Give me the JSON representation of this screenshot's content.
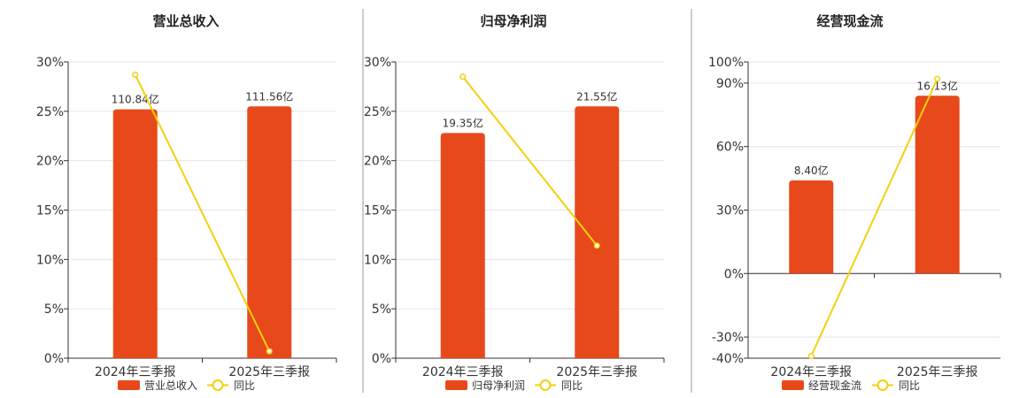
{
  "colors": {
    "bar": "#E8491B",
    "line": "#F2D10C",
    "grid": "#E4E6EC",
    "axis": "#333333",
    "divider": "#999999"
  },
  "chart_data": [
    {
      "type": "bar",
      "title": "营业总收入",
      "categories": [
        "2024年三季报",
        "2025年三季报"
      ],
      "ylim": [
        0,
        30
      ],
      "yticks": [
        0,
        5,
        10,
        15,
        20,
        25,
        30
      ],
      "ytick_labels": [
        "0%",
        "5%",
        "10%",
        "15%",
        "20%",
        "25%",
        "30%"
      ],
      "grid": true,
      "legend_position": "bottom",
      "series": [
        {
          "name": "营业总收入",
          "type": "bar",
          "values": [
            25.2,
            25.5
          ],
          "labels": [
            "110.84亿",
            "111.56亿"
          ]
        },
        {
          "name": "同比",
          "type": "line",
          "values": [
            28.7,
            0.7
          ]
        }
      ]
    },
    {
      "type": "bar",
      "title": "归母净利润",
      "categories": [
        "2024年三季报",
        "2025年三季报"
      ],
      "ylim": [
        0,
        30
      ],
      "yticks": [
        0,
        5,
        10,
        15,
        20,
        25,
        30
      ],
      "ytick_labels": [
        "0%",
        "5%",
        "10%",
        "15%",
        "20%",
        "25%",
        "30%"
      ],
      "grid": true,
      "legend_position": "bottom",
      "series": [
        {
          "name": "归母净利润",
          "type": "bar",
          "values": [
            22.8,
            25.5
          ],
          "labels": [
            "19.35亿",
            "21.55亿"
          ]
        },
        {
          "name": "同比",
          "type": "line",
          "values": [
            28.5,
            11.4
          ]
        }
      ]
    },
    {
      "type": "bar",
      "title": "经营现金流",
      "categories": [
        "2024年三季报",
        "2025年三季报"
      ],
      "ylim": [
        -40,
        100
      ],
      "yticks": [
        -40,
        -30,
        0,
        30,
        60,
        90,
        100
      ],
      "ytick_labels": [
        "-40%",
        "-30%",
        "0%",
        "30%",
        "60%",
        "90%",
        "100%"
      ],
      "grid": true,
      "legend_position": "bottom",
      "series": [
        {
          "name": "经营现金流",
          "type": "bar",
          "values": [
            44,
            84
          ],
          "labels": [
            "8.40亿",
            "16.13亿"
          ]
        },
        {
          "name": "同比",
          "type": "line",
          "values": [
            -39,
            92
          ]
        }
      ]
    }
  ]
}
